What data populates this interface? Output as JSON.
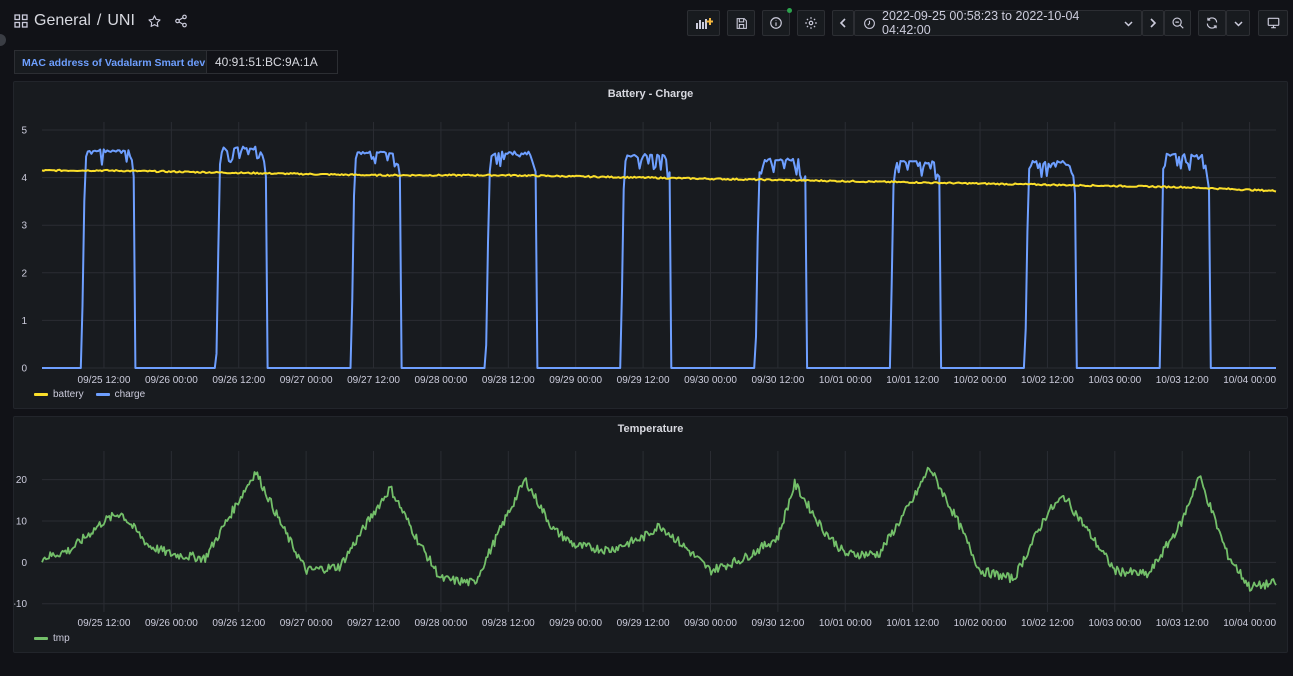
{
  "header": {
    "folder": "General",
    "separator": "/",
    "dashboard": "UNI",
    "time_range": "2022-09-25 00:58:23 to 2022-10-04 04:42:00"
  },
  "variables": {
    "label": "MAC address of Vadalarm Smart device",
    "value": "40:91:51:BC:9A:1A"
  },
  "colors": {
    "battery": "#fade2a",
    "charge": "#6e9fff",
    "tmp": "#73bf69",
    "status_dot": "#2da44e"
  },
  "icons": [
    "apps-icon",
    "star-icon",
    "share-icon",
    "add-panel-icon",
    "save-icon",
    "info-icon",
    "gear-icon",
    "chevron-left-icon",
    "clock-icon",
    "chevron-down-icon",
    "chevron-right-icon",
    "zoom-out-icon",
    "refresh-icon",
    "tv-mode-icon"
  ],
  "panels": {
    "battery": {
      "title": "Battery - Charge",
      "legend": [
        "battery",
        "charge"
      ]
    },
    "temperature": {
      "title": "Temperature",
      "legend": [
        "tmp"
      ]
    }
  },
  "chart_data": [
    {
      "type": "line",
      "title": "Battery - Charge",
      "x_start": "2022-09-25 00:58",
      "x_end": "2022-10-04 04:42",
      "x_ticks": [
        "09/25 12:00",
        "09/26 00:00",
        "09/26 12:00",
        "09/27 00:00",
        "09/27 12:00",
        "09/28 00:00",
        "09/28 12:00",
        "09/29 00:00",
        "09/29 12:00",
        "09/30 00:00",
        "09/30 12:00",
        "10/01 00:00",
        "10/01 12:00",
        "10/02 00:00",
        "10/02 12:00",
        "10/03 00:00",
        "10/03 12:00",
        "10/04 00:00"
      ],
      "y_ticks": [
        "0",
        "1",
        "2",
        "3",
        "4",
        "5"
      ],
      "ylim": [
        0,
        5
      ],
      "grid": true,
      "legend_position": "bottom-left",
      "series": [
        {
          "name": "battery",
          "x": [
            "2022-09-25 01:00",
            "2022-09-25 12:00",
            "2022-09-26 12:00",
            "2022-09-27 12:00",
            "2022-09-28 12:00",
            "2022-09-29 12:00",
            "2022-09-30 12:00",
            "2022-10-01 12:00",
            "2022-10-02 12:00",
            "2022-10-03 12:00",
            "2022-10-04 04:40"
          ],
          "values": [
            4.15,
            4.15,
            4.1,
            4.05,
            4.05,
            4.0,
            3.95,
            3.9,
            3.85,
            3.8,
            3.72
          ]
        },
        {
          "name": "charge",
          "on_intervals": [
            [
              "2022-09-25 08:00",
              "2022-09-25 17:30"
            ],
            [
              "2022-09-26 08:00",
              "2022-09-26 17:00"
            ],
            [
              "2022-09-27 08:00",
              "2022-09-27 17:00"
            ],
            [
              "2022-09-28 08:00",
              "2022-09-28 17:00"
            ],
            [
              "2022-09-29 08:00",
              "2022-09-29 17:00"
            ],
            [
              "2022-09-30 08:00",
              "2022-09-30 17:00"
            ],
            [
              "2022-10-01 08:00",
              "2022-10-01 17:00"
            ],
            [
              "2022-10-02 08:00",
              "2022-10-02 17:00"
            ],
            [
              "2022-10-03 08:00",
              "2022-10-03 17:00"
            ]
          ],
          "on_peaks": [
            4.6,
            4.65,
            4.55,
            4.55,
            4.5,
            4.4,
            4.35,
            4.35,
            4.5
          ],
          "off_value": 0
        }
      ]
    },
    {
      "type": "line",
      "title": "Temperature",
      "x_ticks": [
        "09/25 12:00",
        "09/26 00:00",
        "09/26 12:00",
        "09/27 00:00",
        "09/27 12:00",
        "09/28 00:00",
        "09/28 12:00",
        "09/29 00:00",
        "09/29 12:00",
        "09/30 00:00",
        "09/30 12:00",
        "10/01 00:00",
        "10/01 12:00",
        "10/02 00:00",
        "10/02 12:00",
        "10/03 00:00",
        "10/03 12:00",
        "10/04 00:00"
      ],
      "y_ticks": [
        "-10",
        "0",
        "10",
        "20"
      ],
      "ylim": [
        -12,
        25
      ],
      "grid": true,
      "legend_position": "bottom-left",
      "series": [
        {
          "name": "tmp",
          "x": [
            "2022-09-25 01:00",
            "2022-09-25 06:00",
            "2022-09-25 12:00",
            "2022-09-25 15:00",
            "2022-09-25 20:00",
            "2022-09-26 00:00",
            "2022-09-26 06:00",
            "2022-09-26 12:00",
            "2022-09-26 15:00",
            "2022-09-26 20:00",
            "2022-09-27 00:00",
            "2022-09-27 06:00",
            "2022-09-27 12:00",
            "2022-09-27 15:00",
            "2022-09-27 20:00",
            "2022-09-28 00:00",
            "2022-09-28 06:00",
            "2022-09-28 12:00",
            "2022-09-28 15:00",
            "2022-09-28 20:00",
            "2022-09-29 00:00",
            "2022-09-29 06:00",
            "2022-09-29 12:00",
            "2022-09-29 15:00",
            "2022-09-29 20:00",
            "2022-09-30 00:00",
            "2022-09-30 06:00",
            "2022-09-30 12:00",
            "2022-09-30 15:00",
            "2022-09-30 20:00",
            "2022-10-01 00:00",
            "2022-10-01 06:00",
            "2022-10-01 12:00",
            "2022-10-01 15:00",
            "2022-10-01 20:00",
            "2022-10-02 00:00",
            "2022-10-02 06:00",
            "2022-10-02 12:00",
            "2022-10-02 15:00",
            "2022-10-02 20:00",
            "2022-10-03 00:00",
            "2022-10-03 06:00",
            "2022-10-03 12:00",
            "2022-10-03 15:00",
            "2022-10-03 20:00",
            "2022-10-04 00:00",
            "2022-10-04 04:40"
          ],
          "values": [
            1,
            3,
            10,
            12,
            4,
            2,
            1,
            15,
            22,
            8,
            -2,
            -1,
            12,
            18,
            5,
            -4,
            -5,
            12,
            20,
            8,
            4,
            3,
            6,
            9,
            3,
            -2,
            1,
            6,
            19,
            8,
            2,
            2,
            15,
            23,
            10,
            -2,
            -4,
            12,
            16,
            6,
            -2,
            -3,
            10,
            21,
            2,
            -6,
            -5
          ]
        }
      ]
    }
  ]
}
